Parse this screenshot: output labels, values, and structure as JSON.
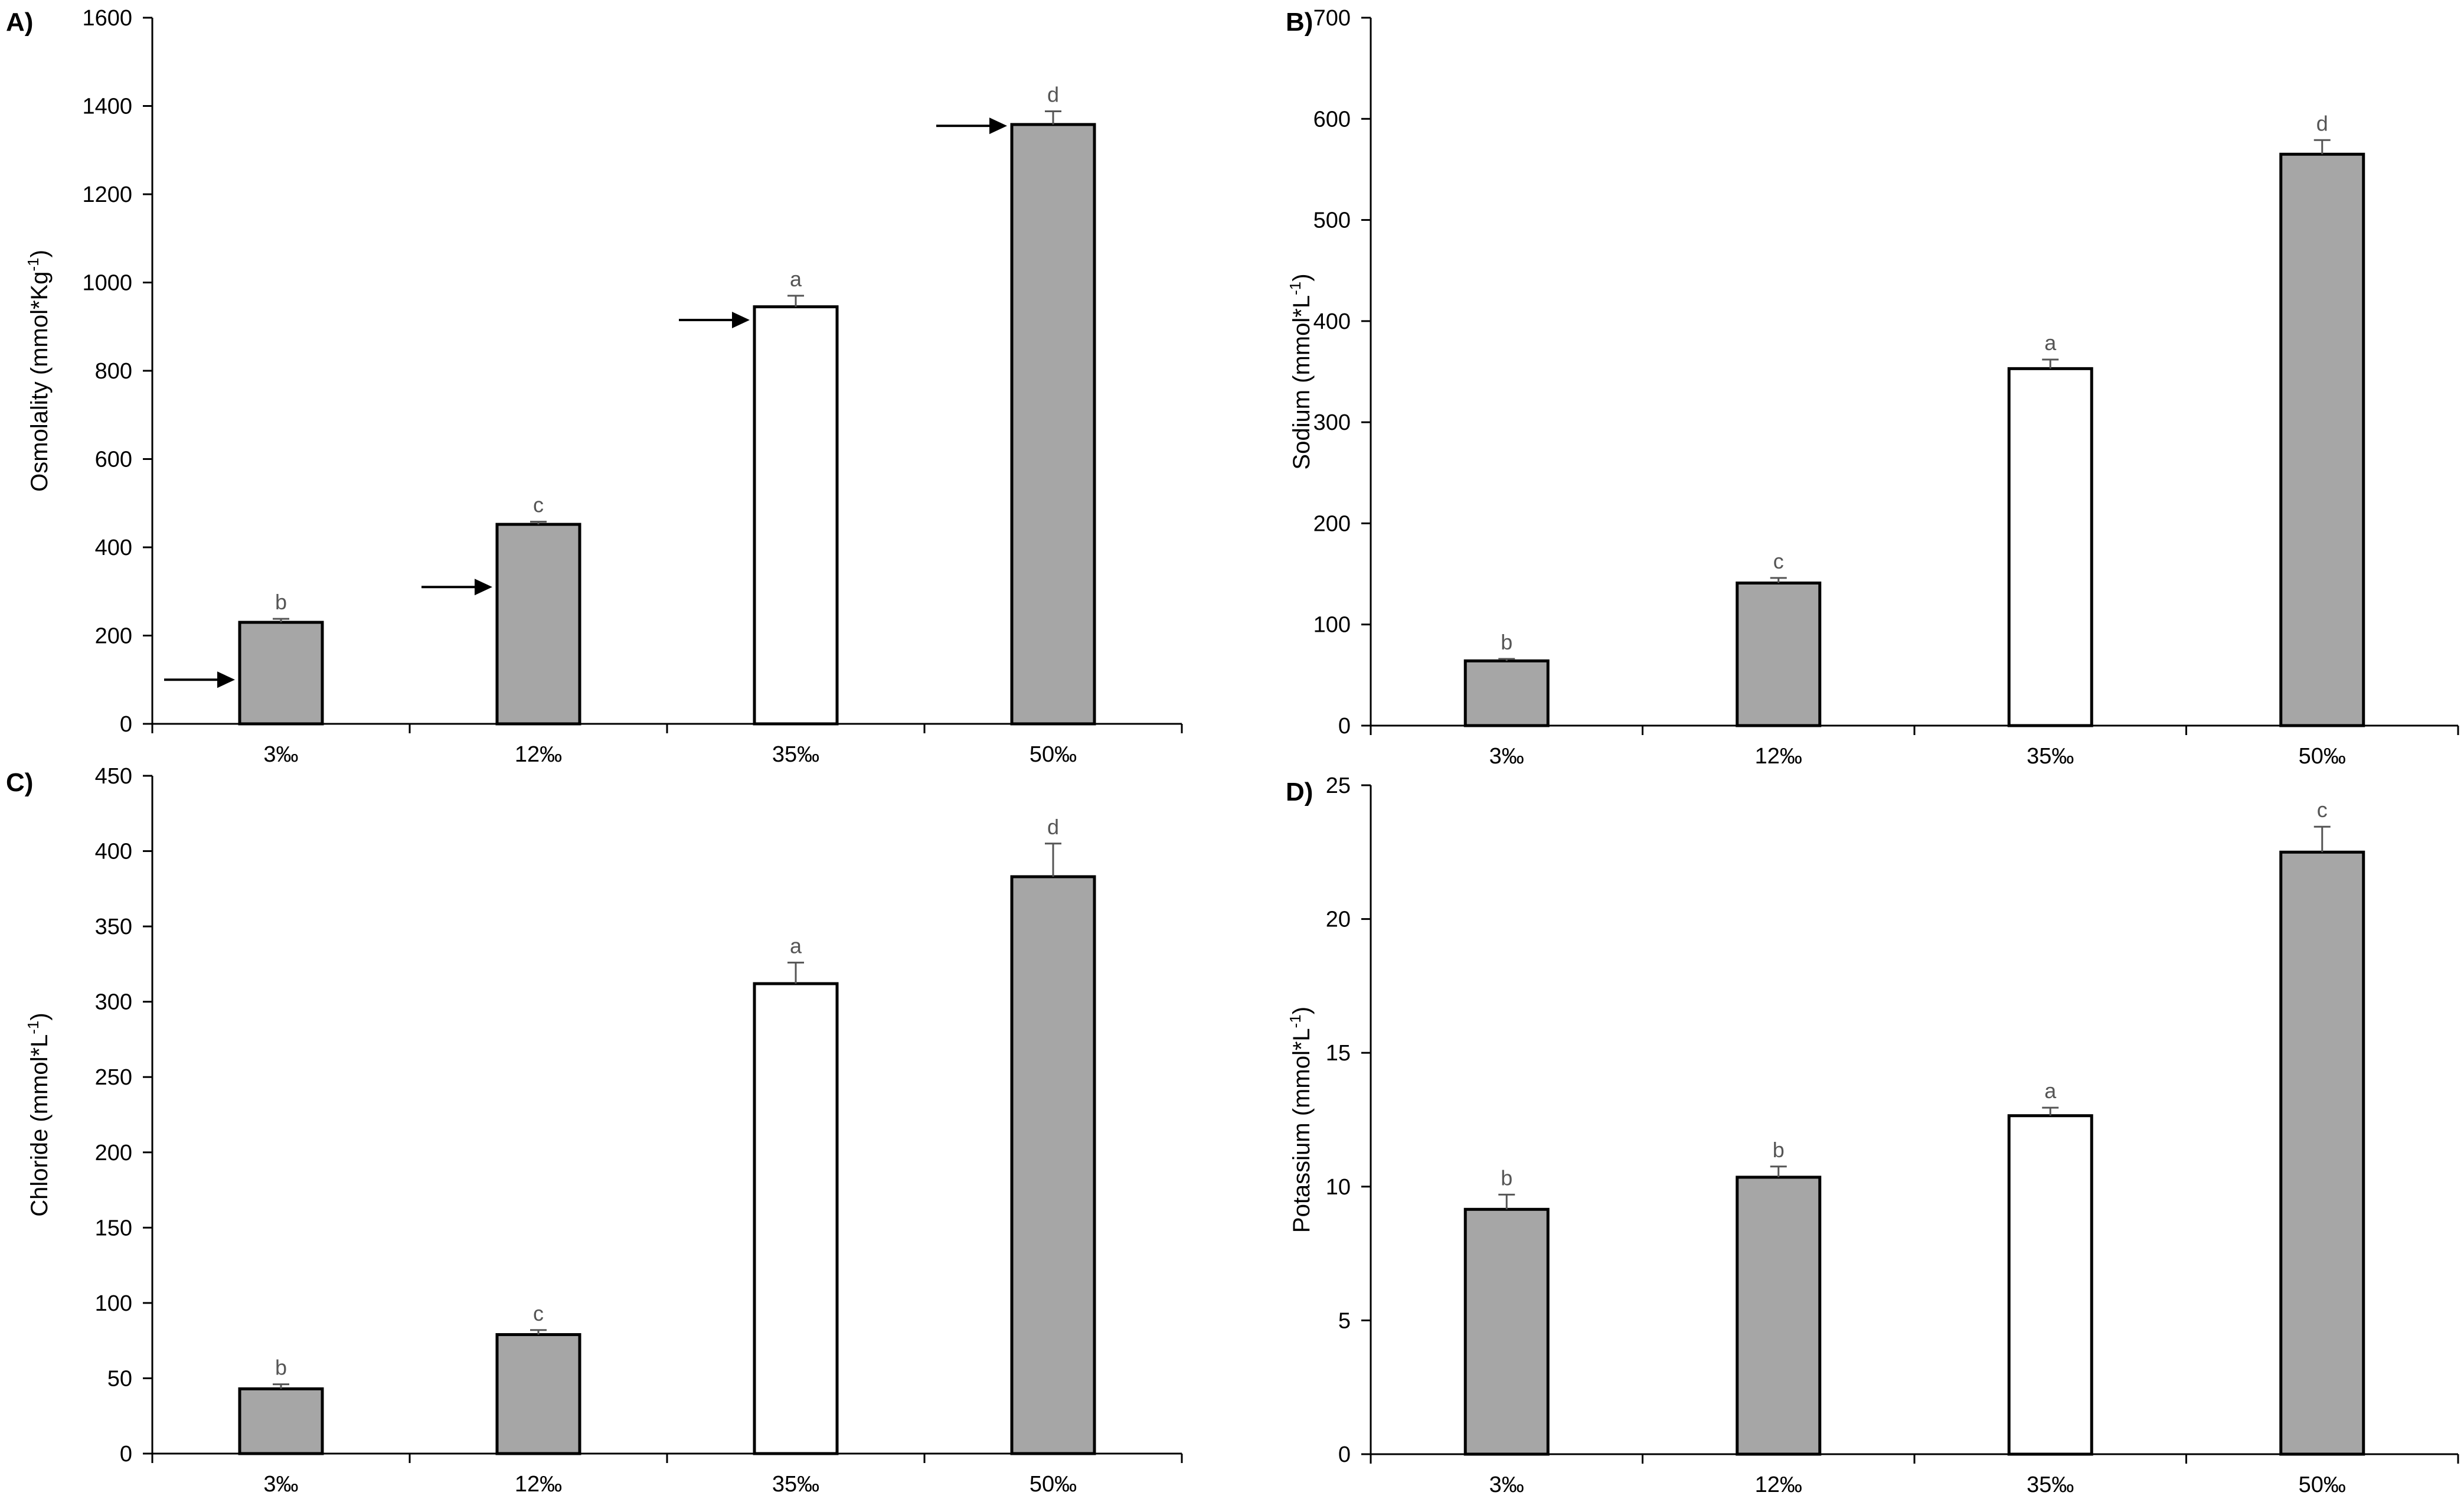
{
  "colors": {
    "filled": "#a6a6a6",
    "open": "#ffffff",
    "axis": "#000000",
    "annotation": "#555555"
  },
  "chart_data": [
    {
      "type": "bar",
      "panel": "A)",
      "ylabel": "Osmolality (mmol*Kg",
      "ylabel_sup": "-1",
      "ylabel_close": ")",
      "ylim": [
        0,
        1600
      ],
      "yticks": [
        0,
        200,
        400,
        600,
        800,
        1000,
        1200,
        1400,
        1600
      ],
      "categories": [
        "3‰",
        "12‰",
        "35‰",
        "50‰"
      ],
      "values": [
        230,
        452,
        945,
        1358
      ],
      "errors": [
        8,
        6,
        25,
        30
      ],
      "letters": [
        "b",
        "c",
        "a",
        "d"
      ],
      "fill": [
        "filled",
        "filled",
        "open",
        "filled"
      ],
      "arrows": [
        100,
        310,
        915,
        1355
      ]
    },
    {
      "type": "bar",
      "panel": "B)",
      "ylabel": "Sodium (mmol*L",
      "ylabel_sup": "-1",
      "ylabel_close": ")",
      "ylim": [
        0,
        700
      ],
      "yticks": [
        0,
        100,
        200,
        300,
        400,
        500,
        600,
        700
      ],
      "categories": [
        "3‰",
        "12‰",
        "35‰",
        "50‰"
      ],
      "values": [
        64,
        141,
        353,
        565
      ],
      "errors": [
        2,
        5,
        9,
        14
      ],
      "letters": [
        "b",
        "c",
        "a",
        "d"
      ],
      "fill": [
        "filled",
        "filled",
        "open",
        "filled"
      ],
      "arrows": []
    },
    {
      "type": "bar",
      "panel": "C)",
      "ylabel": "Chloride (mmol*L",
      "ylabel_sup": "-1",
      "ylabel_close": ")",
      "ylim": [
        0,
        450
      ],
      "yticks": [
        0,
        50,
        100,
        150,
        200,
        250,
        300,
        350,
        400,
        450
      ],
      "categories": [
        "3‰",
        "12‰",
        "35‰",
        "50‰"
      ],
      "values": [
        43,
        79,
        312,
        383
      ],
      "errors": [
        3,
        3,
        14,
        22
      ],
      "letters": [
        "b",
        "c",
        "a",
        "d"
      ],
      "fill": [
        "filled",
        "filled",
        "open",
        "filled"
      ],
      "arrows": []
    },
    {
      "type": "bar",
      "panel": "D)",
      "ylabel": "Potassium (mmol*L",
      "ylabel_sup": "-1",
      "ylabel_close": ")",
      "ylim": [
        0,
        25
      ],
      "yticks": [
        0,
        5,
        10,
        15,
        20,
        25
      ],
      "categories": [
        "3‰",
        "12‰",
        "35‰",
        "50‰"
      ],
      "values": [
        9.15,
        10.35,
        12.65,
        22.5
      ],
      "errors": [
        0.55,
        0.4,
        0.3,
        0.95
      ],
      "letters": [
        "b",
        "b",
        "a",
        "c"
      ],
      "fill": [
        "filled",
        "filled",
        "open",
        "filled"
      ],
      "arrows": []
    }
  ]
}
